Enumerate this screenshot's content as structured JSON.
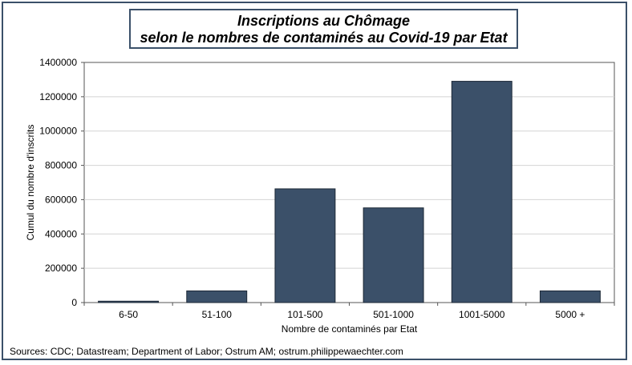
{
  "title_lines": [
    "Inscriptions au Chômage",
    "selon le nombres de contaminés au Covid-19 par Etat"
  ],
  "source": "Sources: CDC; Datastream; Department of Labor; Ostrum AM;  ostrum.philippewaechter.com",
  "chart_data": {
    "type": "bar",
    "title": "Inscriptions au Chômage selon le nombres de contaminés au Covid-19 par Etat",
    "xlabel": "Nombre de contaminés par Etat",
    "ylabel": "Cumul du nombre d'inscrits",
    "categories": [
      "6-50",
      "51-100",
      "101-500",
      "501-1000",
      "1001-5000",
      "5000 +"
    ],
    "values": [
      8000,
      68000,
      663000,
      552000,
      1290000,
      68000
    ],
    "ylim": [
      0,
      1400000
    ],
    "yticks": [
      0,
      200000,
      400000,
      600000,
      800000,
      1000000,
      1200000,
      1400000
    ],
    "ytick_labels": [
      "0",
      "200000",
      "400000",
      "600000",
      "800000",
      "1000000",
      "1200000",
      "1400000"
    ],
    "grid": true,
    "bar_color": "#3b5069",
    "legend": false
  }
}
